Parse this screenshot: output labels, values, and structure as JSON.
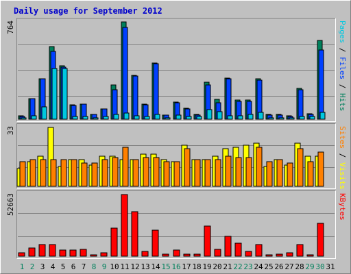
{
  "chart_data": {
    "type": "bar",
    "title": "Daily usage for September 2012",
    "categories": [
      "1",
      "2",
      "3",
      "4",
      "5",
      "6",
      "7",
      "8",
      "9",
      "10",
      "11",
      "12",
      "13",
      "14",
      "15",
      "16",
      "17",
      "18",
      "19",
      "20",
      "21",
      "22",
      "23",
      "24",
      "25",
      "26",
      "27",
      "28",
      "29",
      "30",
      "31"
    ],
    "weekend_days": [
      "1",
      "2",
      "8",
      "9",
      "15",
      "16",
      "22",
      "23",
      "29",
      "30"
    ],
    "panels": [
      {
        "name": "hits-files-pages",
        "scale_label": "764",
        "ylim": [
          0,
          764
        ],
        "legend": [
          {
            "text": "Hits",
            "color": "#00805c"
          },
          {
            "text": "Files",
            "color": "#0040ff"
          },
          {
            "text": "Pages",
            "color": "#00c8e0"
          }
        ],
        "series": [
          {
            "name": "Hits",
            "color": "#00805c",
            "values": [
              25,
              163,
              320,
              570,
              420,
              113,
              120,
              40,
              83,
              270,
              764,
              345,
              120,
              440,
              32,
              135,
              85,
              35,
              290,
              155,
              325,
              150,
              150,
              315,
              35,
              35,
              25,
              240,
              45,
              620,
              0
            ]
          },
          {
            "name": "Files",
            "color": "#0040ff",
            "values": [
              20,
              160,
              315,
              530,
              410,
              110,
              120,
              37,
              80,
              230,
              720,
              340,
              115,
              435,
              30,
              130,
              80,
              32,
              270,
              130,
              320,
              142,
              142,
              305,
              30,
              30,
              22,
              230,
              40,
              545,
              0
            ]
          },
          {
            "name": "Pages",
            "color": "#00c8e0",
            "values": [
              8,
              28,
              95,
              400,
              400,
              22,
              22,
              10,
              20,
              40,
              50,
              25,
              20,
              35,
              8,
              30,
              22,
              20,
              75,
              60,
              28,
              25,
              40,
              55,
              12,
              12,
              12,
              20,
              20,
              55,
              0
            ]
          }
        ]
      },
      {
        "name": "visits-sites",
        "scale_label": "33",
        "ylim": [
          0,
          33
        ],
        "legend": [
          {
            "text": "Visits",
            "color": "#ffff00"
          },
          {
            "text": "Sites",
            "color": "#ff8000"
          }
        ],
        "series": [
          {
            "name": "Visits",
            "color": "#ffff00",
            "values": [
              10,
              14,
              17,
              33,
              11,
              15,
              15,
              12,
              17,
              17,
              15,
              15,
              18,
              18,
              15,
              14,
              23,
              15,
              15,
              17,
              21,
              22,
              23,
              24,
              11,
              15,
              12,
              24,
              17,
              17,
              0
            ]
          },
          {
            "name": "Sites",
            "color": "#ff8000",
            "values": [
              14,
              15,
              15,
              15,
              15,
              15,
              13,
              13,
              15,
              16,
              22,
              15,
              16,
              16,
              14,
              14,
              21,
              15,
              15,
              15,
              17,
              16,
              16,
              22,
              14,
              15,
              13,
              21,
              14,
              19,
              0
            ]
          }
        ]
      },
      {
        "name": "kbytes",
        "scale_label": "52663",
        "ylim": [
          0,
          52663
        ],
        "legend": [
          {
            "text": "KBytes",
            "color": "#ff0000"
          }
        ],
        "series": [
          {
            "name": "KBytes",
            "color": "#ff0000",
            "values": [
              3000,
              7000,
              10000,
              10000,
              5000,
              5000,
              6000,
              1000,
              3000,
              24000,
              52663,
              38000,
              4000,
              22000,
              1500,
              5000,
              2000,
              2000,
              26000,
              6000,
              17000,
              11000,
              4000,
              10000,
              1000,
              2000,
              3000,
              10000,
              1000,
              28000,
              0
            ]
          }
        ]
      }
    ]
  }
}
